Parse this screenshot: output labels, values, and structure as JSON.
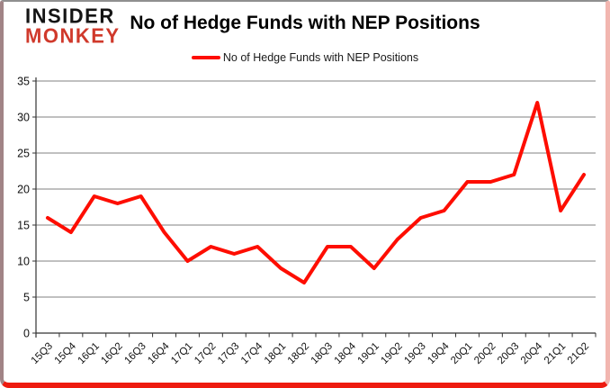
{
  "page": {
    "logo": {
      "line1": "INSIDER",
      "line2": "MONKEY"
    },
    "title": "No of Hedge Funds with NEP Positions",
    "legend": {
      "label": "No of Hedge Funds with NEP Positions"
    }
  },
  "colors": {
    "line": "#fe0d00",
    "grid": "#808080",
    "axis": "#333333",
    "tick_text": "#111111",
    "logo_black": "#141414",
    "logo_red": "#d0392b",
    "frame_bottom": "#ee1b10"
  },
  "chart_data": {
    "type": "line",
    "title": "No of Hedge Funds with NEP Positions",
    "categories": [
      "15Q3",
      "15Q4",
      "16Q1",
      "16Q2",
      "16Q3",
      "16Q4",
      "17Q1",
      "17Q2",
      "17Q3",
      "17Q4",
      "18Q1",
      "18Q2",
      "18Q3",
      "18Q4",
      "19Q1",
      "19Q2",
      "19Q3",
      "19Q4",
      "20Q1",
      "20Q2",
      "20Q3",
      "20Q4",
      "21Q1",
      "21Q2"
    ],
    "series": [
      {
        "name": "No of Hedge Funds with NEP Positions",
        "color": "#fe0d00",
        "values": [
          16,
          14,
          19,
          18,
          19,
          14,
          10,
          12,
          11,
          12,
          9,
          7,
          12,
          12,
          9,
          13,
          16,
          17,
          21,
          21,
          22,
          32,
          17,
          22
        ]
      }
    ],
    "xlabel": "",
    "ylabel": "",
    "ylim": [
      0,
      35
    ],
    "ytick_step": 5,
    "grid": true,
    "legend_position": "top"
  }
}
